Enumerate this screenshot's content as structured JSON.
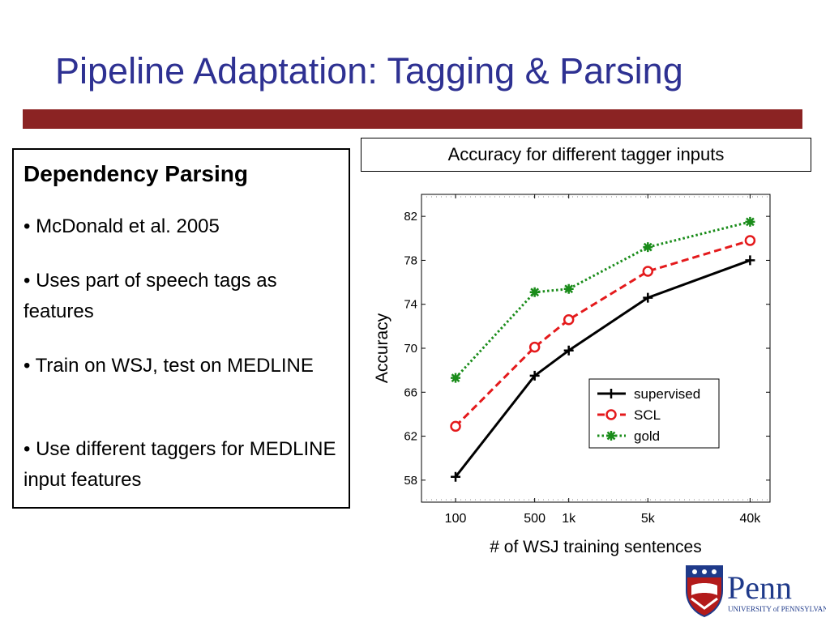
{
  "slide": {
    "title": "Pipeline Adaptation: Tagging & Parsing",
    "panel": {
      "heading": "Dependency Parsing",
      "bullets": [
        "• McDonald et al. 2005",
        "• Uses part of speech tags as features",
        "• Train on WSJ, test on MEDLINE",
        "• Use different taggers for MEDLINE input features"
      ]
    },
    "logo": {
      "name": "Penn",
      "subtitle": "UNIVERSITY of PENNSYLVANIA"
    }
  },
  "colors": {
    "title": "#2e3192",
    "rule": "#8b2323",
    "supervised": "#000000",
    "scl": "#e41a1c",
    "gold": "#1a8c1a"
  },
  "chart_data": {
    "type": "line",
    "title": "Accuracy for different tagger inputs",
    "xlabel": "# of WSJ training sentences",
    "ylabel": "Accuracy",
    "x_ticks": [
      {
        "label": "100",
        "value": 100
      },
      {
        "label": "500",
        "value": 500
      },
      {
        "label": "1k",
        "value": 1000
      },
      {
        "label": "5k",
        "value": 5000
      },
      {
        "label": "40k",
        "value": 40000
      }
    ],
    "y_ticks": [
      58,
      62,
      66,
      70,
      74,
      78,
      82
    ],
    "xlim": [
      50,
      60000
    ],
    "ylim": [
      56,
      84
    ],
    "x_scale": "log",
    "legend_position": "lower-right",
    "series": [
      {
        "name": "supervised",
        "marker": "plus",
        "dash": "solid",
        "x": [
          100,
          500,
          1000,
          5000,
          40000
        ],
        "y": [
          58.3,
          67.5,
          69.8,
          74.6,
          78.0
        ]
      },
      {
        "name": "SCL",
        "marker": "circle",
        "dash": "dashed",
        "x": [
          100,
          500,
          1000,
          5000,
          40000
        ],
        "y": [
          62.9,
          70.1,
          72.6,
          77.0,
          79.8
        ]
      },
      {
        "name": "gold",
        "marker": "star",
        "dash": "dotted",
        "x": [
          100,
          500,
          1000,
          5000,
          40000
        ],
        "y": [
          67.3,
          75.1,
          75.4,
          79.2,
          81.5
        ]
      }
    ]
  }
}
